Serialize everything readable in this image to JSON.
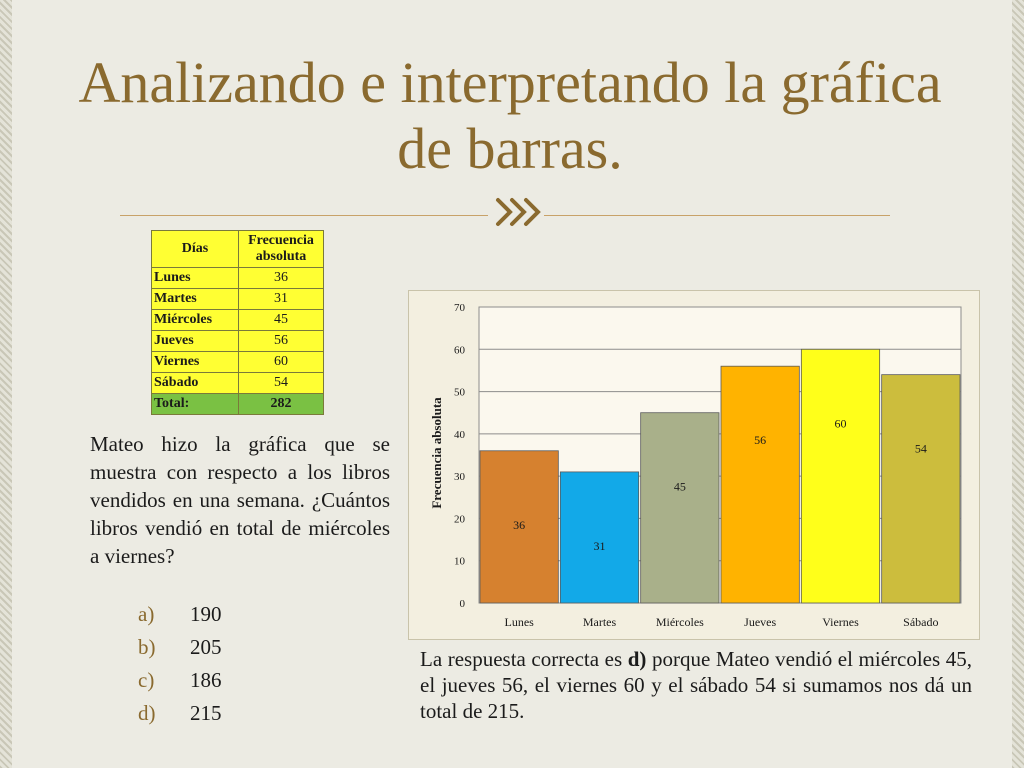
{
  "title": "Analizando e interpretando la gráfica de barras.",
  "table": {
    "header_day": "Días",
    "header_freq": "Frecuencia absoluta",
    "rows": [
      {
        "day": "Lunes",
        "value": "36"
      },
      {
        "day": "Martes",
        "value": "31"
      },
      {
        "day": "Miércoles",
        "value": "45"
      },
      {
        "day": "Jueves",
        "value": "56"
      },
      {
        "day": "Viernes",
        "value": "60"
      },
      {
        "day": "Sábado",
        "value": "54"
      }
    ],
    "total_label": "Total:",
    "total_value": "282"
  },
  "question": "Mateo hizo la gráfica que se muestra con respecto a los libros vendidos en una semana. ¿Cuántos libros vendió en total de miércoles a viernes?",
  "options": [
    {
      "letter": "a)",
      "value": "190"
    },
    {
      "letter": "b)",
      "value": "205"
    },
    {
      "letter": "c)",
      "value": "186"
    },
    {
      "letter": "d)",
      "value": "215"
    }
  ],
  "answer": {
    "prefix": "La respuesta correcta es ",
    "bold": "d)",
    "suffix": " porque Mateo vendió el miércoles 45, el jueves 56, el viernes 60 y el sábado 54 si sumamos nos dá un total de 215."
  },
  "chart_data": {
    "type": "bar",
    "title": "",
    "xlabel": "",
    "ylabel": "Frecuencia absoluta",
    "categories": [
      "Lunes",
      "Martes",
      "Miércoles",
      "Jueves",
      "Viernes",
      "Sábado"
    ],
    "values": [
      36,
      31,
      45,
      56,
      60,
      54
    ],
    "ylim": [
      0,
      70
    ],
    "yticks": [
      0,
      10,
      20,
      30,
      40,
      50,
      60,
      70
    ],
    "grid": true,
    "legend": "none",
    "colors": [
      "#d6812f",
      "#12a9e8",
      "#a9b08a",
      "#ffb300",
      "#ffff1a",
      "#ccbd3d"
    ]
  }
}
